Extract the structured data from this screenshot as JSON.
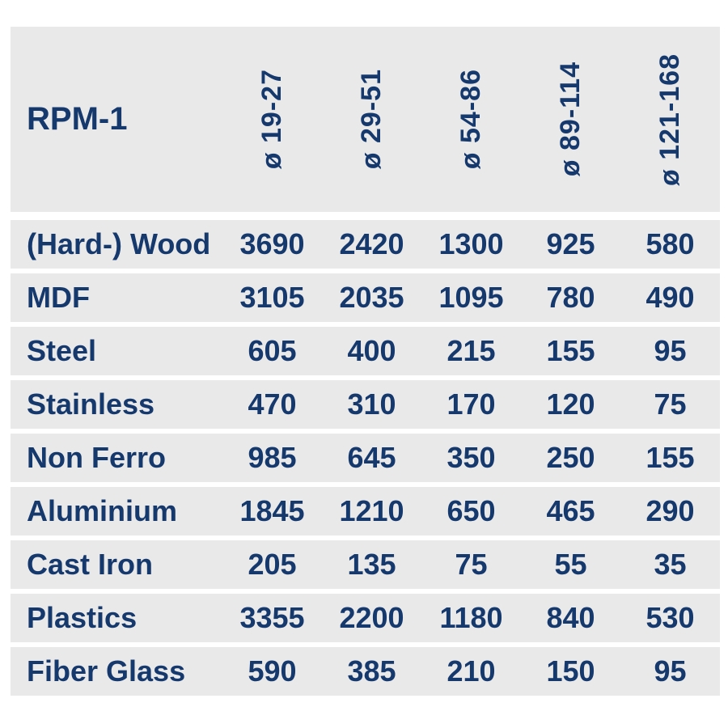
{
  "table": {
    "header": {
      "row_label": "RPM-1",
      "columns": [
        "ø 19-27",
        "ø 29-51",
        "ø 54-86",
        "ø 89-114",
        "ø 121-168"
      ]
    },
    "rows": [
      {
        "material": "(Hard-) Wood",
        "values": [
          "3690",
          "2420",
          "1300",
          "925",
          "580"
        ]
      },
      {
        "material": "MDF",
        "values": [
          "3105",
          "2035",
          "1095",
          "780",
          "490"
        ]
      },
      {
        "material": "Steel",
        "values": [
          "605",
          "400",
          "215",
          "155",
          "95"
        ]
      },
      {
        "material": "Stainless",
        "values": [
          "470",
          "310",
          "170",
          "120",
          "75"
        ]
      },
      {
        "material": "Non Ferro",
        "values": [
          "985",
          "645",
          "350",
          "250",
          "155"
        ]
      },
      {
        "material": "Aluminium",
        "values": [
          "1845",
          "1210",
          "650",
          "465",
          "290"
        ]
      },
      {
        "material": "Cast Iron",
        "values": [
          "205",
          "135",
          "75",
          "55",
          "35"
        ]
      },
      {
        "material": "Plastics",
        "values": [
          "3355",
          "2200",
          "1180",
          "840",
          "530"
        ]
      },
      {
        "material": "Fiber Glass",
        "values": [
          "590",
          "385",
          "210",
          "150",
          "95"
        ]
      }
    ],
    "colors": {
      "text": "#16396d",
      "row_background": "#e9e9e9",
      "separator": "#ffffff"
    }
  },
  "chart_data": {
    "type": "table",
    "title": "RPM-1",
    "categories": [
      "(Hard-) Wood",
      "MDF",
      "Steel",
      "Stainless",
      "Non Ferro",
      "Aluminium",
      "Cast Iron",
      "Plastics",
      "Fiber Glass"
    ],
    "series": [
      {
        "name": "ø 19-27",
        "values": [
          3690,
          3105,
          605,
          470,
          985,
          1845,
          205,
          3355,
          590
        ]
      },
      {
        "name": "ø 29-51",
        "values": [
          2420,
          2035,
          400,
          310,
          645,
          1210,
          135,
          2200,
          385
        ]
      },
      {
        "name": "ø 54-86",
        "values": [
          1300,
          1095,
          215,
          170,
          350,
          650,
          75,
          1180,
          210
        ]
      },
      {
        "name": "ø 89-114",
        "values": [
          925,
          780,
          155,
          120,
          250,
          465,
          55,
          840,
          150
        ]
      },
      {
        "name": "ø 121-168",
        "values": [
          580,
          490,
          95,
          75,
          155,
          290,
          35,
          530,
          95
        ]
      }
    ]
  }
}
